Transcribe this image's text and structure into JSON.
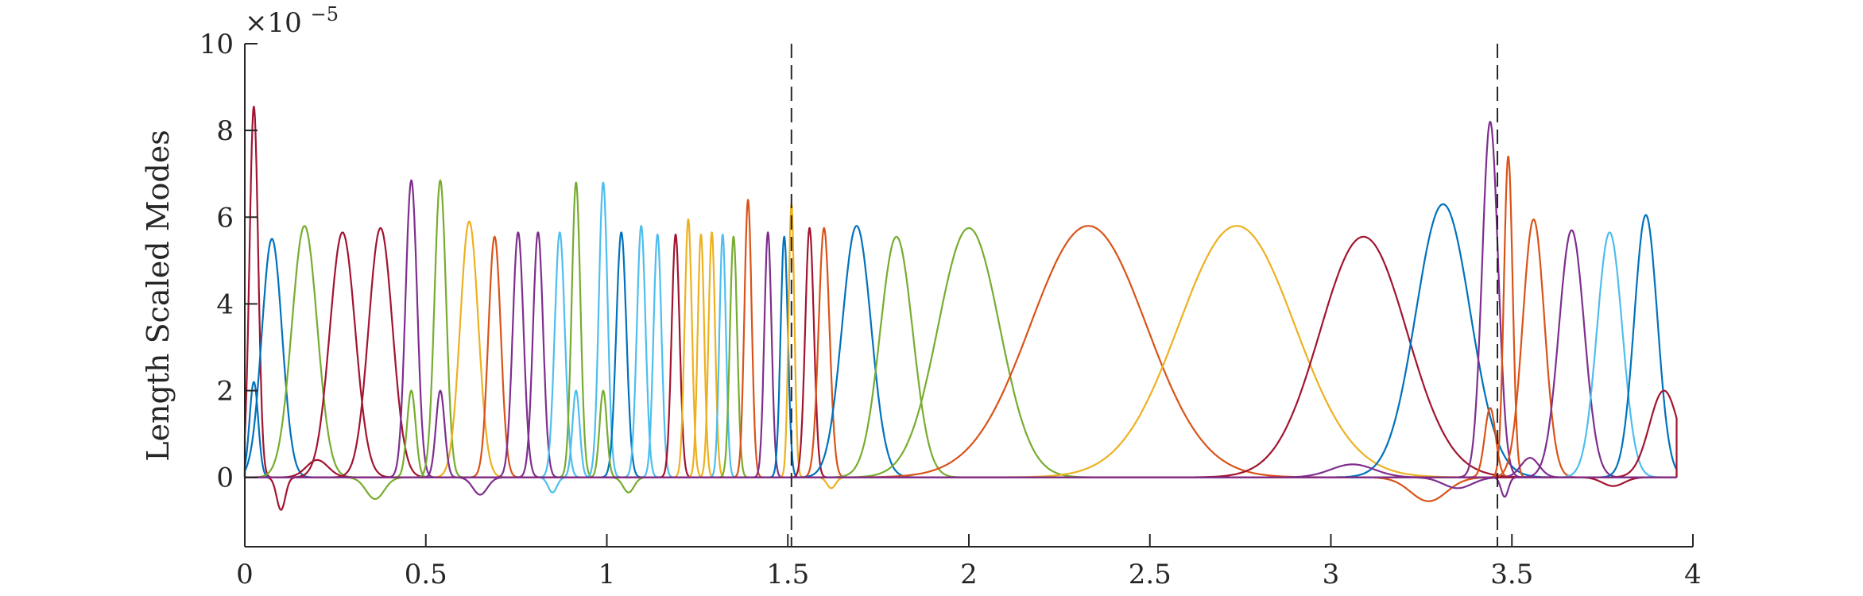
{
  "chart_data": {
    "type": "line",
    "title": "",
    "xlabel": "",
    "ylabel": "Length Scaled Modes",
    "y_exponent_base": "×10",
    "y_exponent_power": "−5",
    "xlim": [
      0,
      4
    ],
    "ylim": [
      -1.6,
      10
    ],
    "xticks": [
      0,
      0.5,
      1,
      1.5,
      2,
      2.5,
      3,
      3.5,
      4
    ],
    "xtick_labels": [
      "0",
      "0.5",
      "1",
      "1.5",
      "2",
      "2.5",
      "3",
      "3.5",
      "4"
    ],
    "yticks": [
      0,
      2,
      4,
      6,
      8,
      10
    ],
    "ytick_labels": [
      "0",
      "2",
      "4",
      "6",
      "8",
      "10"
    ],
    "grid": false,
    "legend": "none",
    "vertical_dashed_lines_x": [
      1.51,
      3.46
    ],
    "series_colors": [
      "#0072BD",
      "#D95319",
      "#EDB120",
      "#7E2F8E",
      "#77AC30",
      "#4DBEEE",
      "#A2142F"
    ],
    "series": [
      {
        "peak_x": 0.025,
        "peak": 8.55,
        "width": 0.012,
        "color": "#A2142F"
      },
      {
        "peak_x": 0.025,
        "peak": 2.2,
        "width": 0.012,
        "color": "#0072BD"
      },
      {
        "peak_x": 0.075,
        "peak": 5.5,
        "width": 0.028,
        "color": "#0072BD"
      },
      {
        "peak_x": 0.165,
        "peak": 5.8,
        "width": 0.035,
        "color": "#77AC30"
      },
      {
        "peak_x": 0.27,
        "peak": 5.65,
        "width": 0.035,
        "color": "#A2142F"
      },
      {
        "peak_x": 0.375,
        "peak": 5.75,
        "width": 0.033,
        "color": "#A2142F"
      },
      {
        "peak_x": 0.46,
        "peak": 6.85,
        "width": 0.016,
        "color": "#7E2F8E"
      },
      {
        "peak_x": 0.54,
        "peak": 6.85,
        "width": 0.016,
        "color": "#77AC30"
      },
      {
        "peak_x": 0.62,
        "peak": 5.9,
        "width": 0.025,
        "color": "#EDB120"
      },
      {
        "peak_x": 0.69,
        "peak": 5.55,
        "width": 0.017,
        "color": "#D95319"
      },
      {
        "peak_x": 0.755,
        "peak": 5.65,
        "width": 0.015,
        "color": "#7E2F8E"
      },
      {
        "peak_x": 0.81,
        "peak": 5.65,
        "width": 0.014,
        "color": "#7E2F8E"
      },
      {
        "peak_x": 0.87,
        "peak": 5.65,
        "width": 0.014,
        "color": "#4DBEEE"
      },
      {
        "peak_x": 0.915,
        "peak": 6.8,
        "width": 0.012,
        "color": "#77AC30"
      },
      {
        "peak_x": 0.99,
        "peak": 6.8,
        "width": 0.012,
        "color": "#4DBEEE"
      },
      {
        "peak_x": 1.04,
        "peak": 5.65,
        "width": 0.014,
        "color": "#0072BD"
      },
      {
        "peak_x": 1.095,
        "peak": 5.8,
        "width": 0.012,
        "color": "#4DBEEE"
      },
      {
        "peak_x": 1.14,
        "peak": 5.6,
        "width": 0.011,
        "color": "#4DBEEE"
      },
      {
        "peak_x": 1.19,
        "peak": 5.6,
        "width": 0.011,
        "color": "#A2142F"
      },
      {
        "peak_x": 1.225,
        "peak": 5.95,
        "width": 0.01,
        "color": "#EDB120"
      },
      {
        "peak_x": 1.26,
        "peak": 5.6,
        "width": 0.009,
        "color": "#EDB120"
      },
      {
        "peak_x": 1.29,
        "peak": 5.65,
        "width": 0.009,
        "color": "#EDB120"
      },
      {
        "peak_x": 1.32,
        "peak": 5.6,
        "width": 0.009,
        "color": "#4DBEEE"
      },
      {
        "peak_x": 1.35,
        "peak": 5.55,
        "width": 0.01,
        "color": "#77AC30"
      },
      {
        "peak_x": 1.39,
        "peak": 6.4,
        "width": 0.01,
        "color": "#D95319"
      },
      {
        "peak_x": 1.445,
        "peak": 5.65,
        "width": 0.01,
        "color": "#7E2F8E"
      },
      {
        "peak_x": 1.49,
        "peak": 5.55,
        "width": 0.01,
        "color": "#0072BD"
      },
      {
        "peak_x": 1.51,
        "peak": 6.3,
        "width": 0.008,
        "color": "#EDB120"
      },
      {
        "peak_x": 1.56,
        "peak": 5.75,
        "width": 0.012,
        "color": "#A2142F"
      },
      {
        "peak_x": 1.6,
        "peak": 5.75,
        "width": 0.015,
        "color": "#D95319"
      },
      {
        "peak_x": 1.69,
        "peak": 5.8,
        "width": 0.04,
        "color": "#0072BD"
      },
      {
        "peak_x": 1.8,
        "peak": 5.55,
        "width": 0.045,
        "color": "#77AC30"
      },
      {
        "peak_x": 2.0,
        "peak": 5.75,
        "width": 0.085,
        "color": "#77AC30"
      },
      {
        "peak_x": 2.33,
        "peak": 5.8,
        "width": 0.16,
        "color": "#D95319"
      },
      {
        "peak_x": 2.74,
        "peak": 5.8,
        "width": 0.16,
        "color": "#EDB120"
      },
      {
        "peak_x": 3.09,
        "peak": 5.55,
        "width": 0.12,
        "color": "#A2142F"
      },
      {
        "peak_x": 3.31,
        "peak": 6.3,
        "width": 0.075,
        "color": "#0072BD"
      },
      {
        "peak_x": 3.44,
        "peak": 8.2,
        "width": 0.022,
        "color": "#7E2F8E"
      },
      {
        "peak_x": 3.49,
        "peak": 7.4,
        "width": 0.012,
        "color": "#D95319"
      },
      {
        "peak_x": 3.56,
        "peak": 5.95,
        "width": 0.03,
        "color": "#D95319"
      },
      {
        "peak_x": 3.665,
        "peak": 5.7,
        "width": 0.035,
        "color": "#7E2F8E"
      },
      {
        "peak_x": 3.77,
        "peak": 5.65,
        "width": 0.035,
        "color": "#4DBEEE"
      },
      {
        "peak_x": 3.87,
        "peak": 6.05,
        "width": 0.032,
        "color": "#0072BD"
      },
      {
        "peak_x": 3.92,
        "peak": 2.0,
        "width": 0.04,
        "color": "#A2142F"
      },
      {
        "peak_x": 0.46,
        "peak": 2.0,
        "width": 0.012,
        "color": "#77AC30"
      },
      {
        "peak_x": 0.54,
        "peak": 2.0,
        "width": 0.012,
        "color": "#7E2F8E"
      },
      {
        "peak_x": 0.915,
        "peak": 2.0,
        "width": 0.01,
        "color": "#4DBEEE"
      },
      {
        "peak_x": 0.99,
        "peak": 2.0,
        "width": 0.01,
        "color": "#77AC30"
      },
      {
        "peak_x": 3.44,
        "peak": 1.6,
        "width": 0.015,
        "color": "#D95319"
      },
      {
        "peak_x": 3.55,
        "peak": 0.45,
        "width": 0.025,
        "color": "#7E2F8E"
      },
      {
        "peak_x": 0.2,
        "peak": 0.4,
        "width": 0.03,
        "color": "#A2142F"
      },
      {
        "peak_x": 0.1,
        "peak": -0.75,
        "width": 0.012,
        "color": "#A2142F"
      },
      {
        "peak_x": 0.36,
        "peak": -0.5,
        "width": 0.025,
        "color": "#77AC30"
      },
      {
        "peak_x": 0.65,
        "peak": -0.4,
        "width": 0.02,
        "color": "#7E2F8E"
      },
      {
        "peak_x": 0.85,
        "peak": -0.35,
        "width": 0.012,
        "color": "#4DBEEE"
      },
      {
        "peak_x": 1.06,
        "peak": -0.35,
        "width": 0.015,
        "color": "#77AC30"
      },
      {
        "peak_x": 1.62,
        "peak": -0.25,
        "width": 0.012,
        "color": "#EDB120"
      },
      {
        "peak_x": 3.06,
        "peak": 0.3,
        "width": 0.06,
        "color": "#7E2F8E"
      },
      {
        "peak_x": 3.27,
        "peak": -0.55,
        "width": 0.05,
        "color": "#D95319"
      },
      {
        "peak_x": 3.35,
        "peak": -0.25,
        "width": 0.04,
        "color": "#7E2F8E"
      },
      {
        "peak_x": 3.78,
        "peak": -0.2,
        "width": 0.03,
        "color": "#A2142F"
      },
      {
        "peak_x": 3.48,
        "peak": -0.45,
        "width": 0.01,
        "color": "#7E2F8E"
      }
    ]
  }
}
